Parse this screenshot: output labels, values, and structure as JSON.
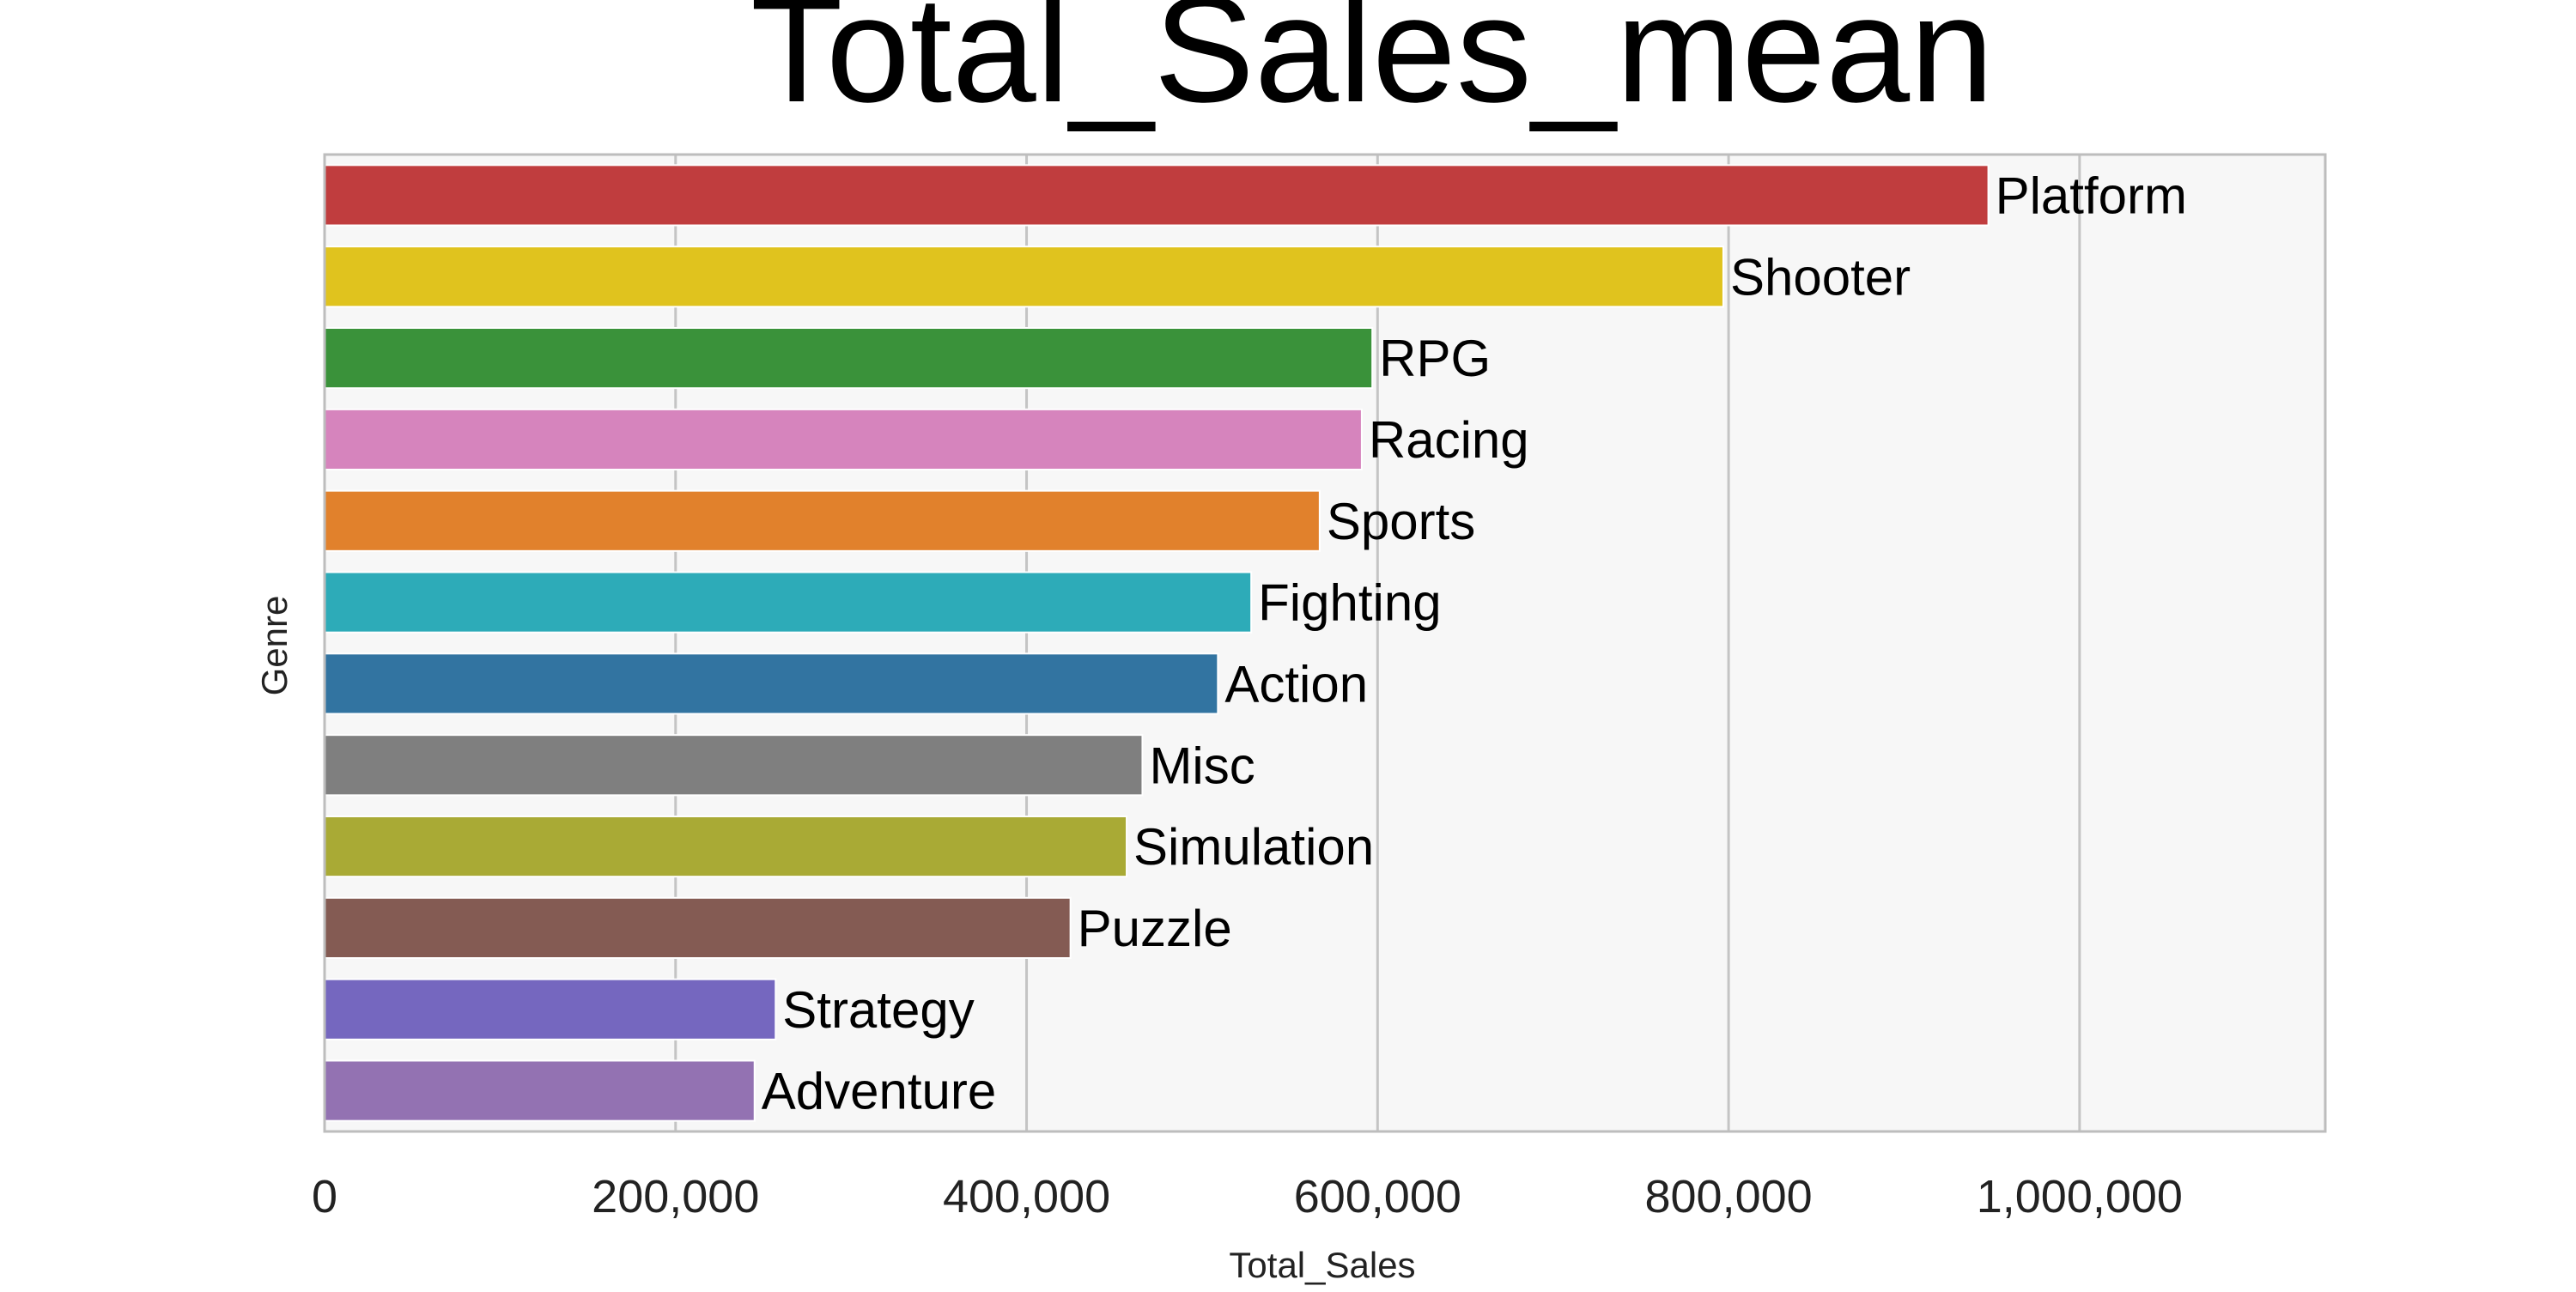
{
  "chart_data": {
    "type": "bar",
    "orientation": "horizontal",
    "title": "Total_Sales_mean",
    "xlabel": "Total_Sales",
    "ylabel": "Genre",
    "xlim": [
      0,
      1140000
    ],
    "xticks": [
      0,
      200000,
      400000,
      600000,
      800000,
      1000000
    ],
    "xtick_labels": [
      "0",
      "200,000",
      "400,000",
      "600,000",
      "800,000",
      "1,000,000"
    ],
    "grid": true,
    "categories": [
      "Platform",
      "Shooter",
      "RPG",
      "Racing",
      "Sports",
      "Fighting",
      "Action",
      "Misc",
      "Simulation",
      "Puzzle",
      "Strategy",
      "Adventure"
    ],
    "values": [
      948000,
      797000,
      597000,
      591000,
      567000,
      528000,
      509000,
      466000,
      457000,
      425000,
      257000,
      245000
    ],
    "colors": [
      "#c03d3e",
      "#e0c31e",
      "#3a923a",
      "#d684bd",
      "#e1812c",
      "#2dabb8",
      "#3274a1",
      "#7f7f7f",
      "#a9aa35",
      "#845b53",
      "#7567bf",
      "#9372b2"
    ]
  }
}
